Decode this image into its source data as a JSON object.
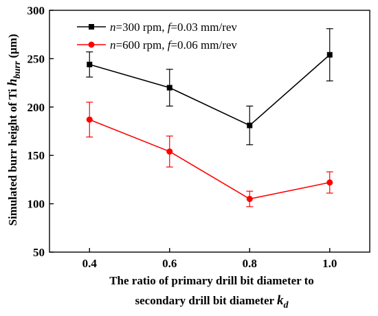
{
  "chart_data": {
    "type": "line",
    "x": [
      0.4,
      0.6,
      0.8,
      1.0
    ],
    "x_ticks": [
      "0.4",
      "0.6",
      "0.8",
      "1.0"
    ],
    "y_ticks": [
      "50",
      "100",
      "150",
      "200",
      "250",
      "300"
    ],
    "xlim": [
      0.3,
      1.1
    ],
    "ylim": [
      50,
      300
    ],
    "grid": false,
    "legend_position": "top-left",
    "xlabel_line1": "The ratio of primary drill bit diameter to",
    "xlabel_line2_text": "secondary drill bit diameter ",
    "xlabel_symbol": "k",
    "xlabel_symbol_sub": "d",
    "ylabel_text": "Simulated burr height of Ti ",
    "ylabel_symbol": "h",
    "ylabel_symbol_sub": "burr",
    "ylabel_unit": " (μm)",
    "series": [
      {
        "legend_n": "n",
        "legend_mid1": "=300 rpm, ",
        "legend_f": "f",
        "legend_mid2": "=0.03 mm/rev",
        "color": "#000000",
        "marker": "square",
        "y": [
          244,
          220,
          181,
          254
        ],
        "err": [
          13,
          19,
          20,
          27
        ]
      },
      {
        "legend_n": "n",
        "legend_mid1": "=600 rpm, ",
        "legend_f": "f",
        "legend_mid2": "=0.06 mm/rev",
        "color": "#ff0000",
        "marker": "circle",
        "y": [
          187,
          154,
          105,
          122
        ],
        "err": [
          18,
          16,
          8,
          11
        ]
      }
    ]
  }
}
